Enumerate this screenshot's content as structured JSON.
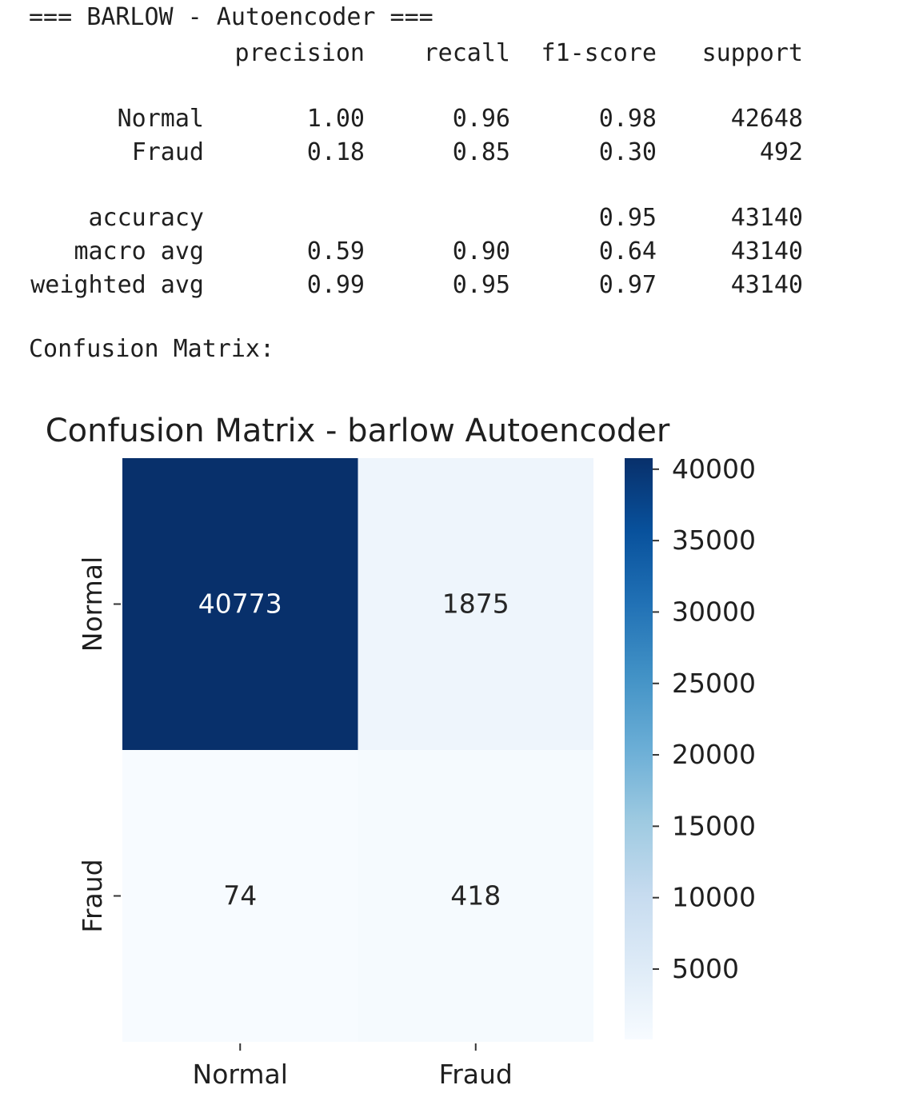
{
  "report": {
    "heading": "=== BARLOW - Autoencoder ===",
    "columns": [
      "precision",
      "recall",
      "f1-score",
      "support"
    ],
    "rows": [
      {
        "label": "Normal",
        "precision": "1.00",
        "recall": "0.96",
        "f1": "0.98",
        "support": "42648"
      },
      {
        "label": "Fraud",
        "precision": "0.18",
        "recall": "0.85",
        "f1": "0.30",
        "support": "492"
      },
      {
        "label": "accuracy",
        "precision": "",
        "recall": "",
        "f1": "0.95",
        "support": "43140"
      },
      {
        "label": "macro avg",
        "precision": "0.59",
        "recall": "0.90",
        "f1": "0.64",
        "support": "43140"
      },
      {
        "label": "weighted avg",
        "precision": "0.99",
        "recall": "0.95",
        "f1": "0.97",
        "support": "43140"
      }
    ],
    "confusion_label": "Confusion Matrix:"
  },
  "chart_data": {
    "type": "heatmap",
    "title": "Confusion Matrix - barlow Autoencoder",
    "xlabel": "",
    "ylabel": "",
    "x_categories": [
      "Normal",
      "Fraud"
    ],
    "y_categories": [
      "Normal",
      "Fraud"
    ],
    "values": [
      [
        40773,
        1875
      ],
      [
        74,
        418
      ]
    ],
    "colormap": "Blues",
    "colorbar": {
      "vmin": 74,
      "vmax": 40773,
      "ticks": [
        5000,
        10000,
        15000,
        20000,
        25000,
        30000,
        35000,
        40000
      ]
    },
    "colors": {
      "low": "#f7fbff",
      "high": "#08306b",
      "annot_dark_bg": "#ffffff",
      "annot_light_bg": "#262626"
    }
  }
}
